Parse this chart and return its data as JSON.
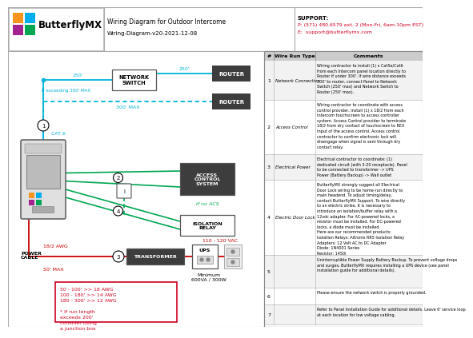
{
  "title": "Wiring Diagram for Outdoor Intercome",
  "subtitle": "Wiring-Diagram-v20-2021-12-08",
  "support_label": "SUPPORT:",
  "support_phone": "P: (571) 480.6579 ext. 2 (Mon-Fri, 6am-10pm EST)",
  "support_email": "E:  support@butterflymx.com",
  "bg_color": "#ffffff",
  "box_bg": "#3d3d3d",
  "cyan": "#00b4d8",
  "red": "#cc0000",
  "green": "#00a651",
  "pink_red": "#cc0022",
  "logo_colors": [
    "#f7941d",
    "#00aeef",
    "#a3238e",
    "#00a651"
  ],
  "wire_run_rows": [
    {
      "num": "1",
      "type": "Network Connection",
      "comment": "Wiring contractor to install (1) x Cat5e/Cat6\nfrom each Intercom panel location directly to\nRouter if under 300'. If wire distance exceeds\n300' to router, connect Panel to Network\nSwitch (250' max) and Network Switch to\nRouter (250' max)."
    },
    {
      "num": "2",
      "type": "Access Control",
      "comment": "Wiring contractor to coordinate with access\ncontrol provider, install (1) x 18/2 from each\nIntercom touchscreen to access controller\nsystem. Access Control provider to terminate\n18/2 from dry contact of touchscreen to REX\nInput of the access control. Access control\ncontractor to confirm electronic lock will\ndisengage when signal is sent through dry\ncontact relay."
    },
    {
      "num": "3",
      "type": "Electrical Power",
      "comment": "Electrical contractor to coordinate: (1)\ndedicated circuit (with 3-20 receptacle). Panel\nto be connected to transformer -> UPS\nPower (Battery Backup) -> Wall outlet"
    },
    {
      "num": "4",
      "type": "Electric Door Lock",
      "comment": "ButterflyMX strongly suggest all Electrical\nDoor Lock wiring to be home-run directly to\nmain headend. To adjust timing/delay,\ncontact ButterflyMX Support. To wire directly\nto an electric strike, it is necessary to\nintroduce an isolation/buffer relay with a\n12vdc adapter. For AC-powered locks, a\nresistor must be installed. For DC-powered\nlocks, a diode must be installed.\nHere are our recommended products:\nIsolation Relays: Altronix RR5 Isolation Relay\nAdapters: 12 Volt AC to DC Adapter\nDiode: 1N4001 Series\nResistor: 1450i"
    },
    {
      "num": "5",
      "type": "",
      "comment": "Uninterruptible Power Supply Battery Backup. To prevent voltage drops\nand surges, ButterflyMX requires installing a UPS device (see panel\ninstallation guide for additional details)."
    },
    {
      "num": "6",
      "type": "",
      "comment": "Please ensure the network switch is properly grounded."
    },
    {
      "num": "7",
      "type": "",
      "comment": "Refer to Panel Installation Guide for additional details. Leave 6' service loop\nat each location for low voltage cabling."
    }
  ],
  "junction_box_text": "50 - 100' >> 18 AWG\n100 - 180' >> 14 AWG\n180 - 300' >> 12 AWG\n\n* If run length\nexceeds 200'\nconsider using\na junction box"
}
